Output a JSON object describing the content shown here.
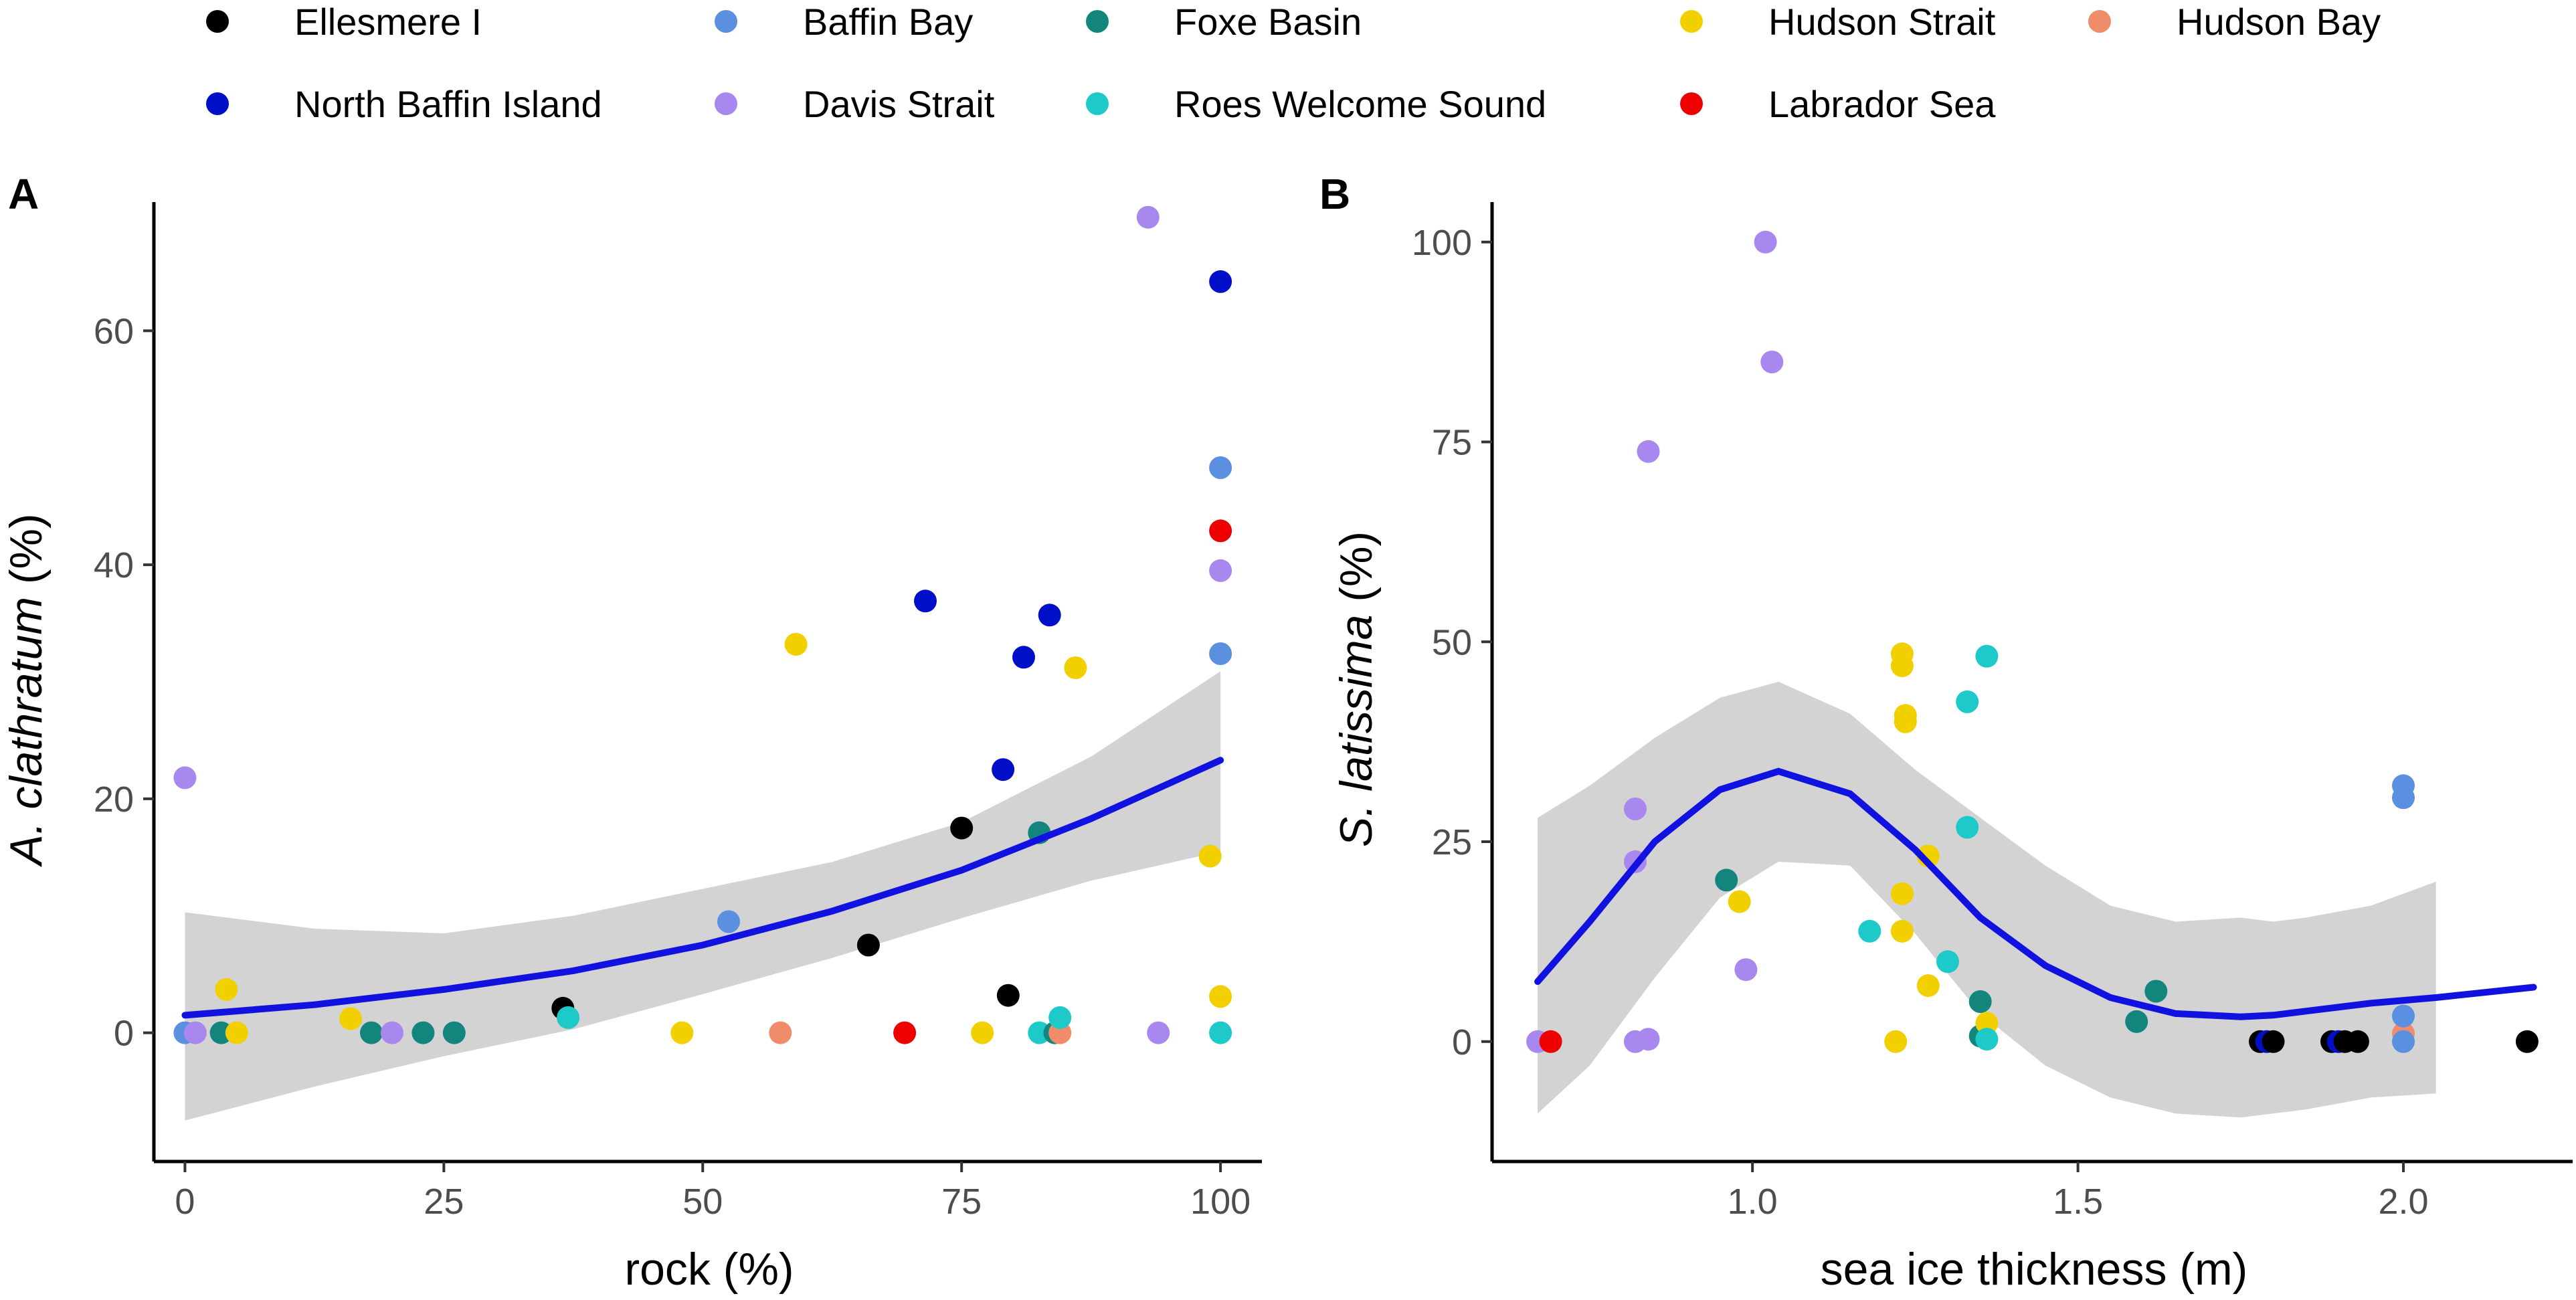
{
  "figure": {
    "legend": [
      {
        "name": "Ellesmere I",
        "color": "#000000"
      },
      {
        "name": "Baffin Bay",
        "color": "#5b8fe0"
      },
      {
        "name": "Foxe Basin",
        "color": "#14857c"
      },
      {
        "name": "Hudson Strait",
        "color": "#f2d000"
      },
      {
        "name": "Hudson Bay",
        "color": "#f08c6a"
      },
      {
        "name": "North Baffin Island",
        "color": "#0010c8"
      },
      {
        "name": "Davis Strait",
        "color": "#a887ee"
      },
      {
        "name": "Roes Welcome Sound",
        "color": "#1ec9c9"
      },
      {
        "name": "Labrador Sea",
        "color": "#ee0000"
      }
    ]
  },
  "chart_data": [
    {
      "type": "scatter",
      "panel_label": "A",
      "title": "",
      "xlabel": "rock (%)",
      "ylabel_italic": "A. clathratum",
      "ylabel_suffix": " (%)",
      "xlim": [
        -3,
        104
      ],
      "ylim": [
        -11,
        71
      ],
      "xticks": [
        0,
        25,
        50,
        75,
        100
      ],
      "yticks": [
        0,
        20,
        40,
        60
      ],
      "points": [
        {
          "group": "Davis Strait",
          "x": 0,
          "y": 21.8
        },
        {
          "group": "Baffin Bay",
          "x": 0,
          "y": 0
        },
        {
          "group": "Davis Strait",
          "x": 1,
          "y": 0
        },
        {
          "group": "Foxe Basin",
          "x": 3.5,
          "y": 0
        },
        {
          "group": "Hudson Strait",
          "x": 4,
          "y": 3.7
        },
        {
          "group": "Hudson Strait",
          "x": 5,
          "y": 0
        },
        {
          "group": "Hudson Strait",
          "x": 16,
          "y": 1.2
        },
        {
          "group": "Foxe Basin",
          "x": 18,
          "y": 0
        },
        {
          "group": "Davis Strait",
          "x": 20,
          "y": 0
        },
        {
          "group": "Foxe Basin",
          "x": 23,
          "y": 0
        },
        {
          "group": "Foxe Basin",
          "x": 26,
          "y": 0
        },
        {
          "group": "Ellesmere I",
          "x": 36.5,
          "y": 2.1
        },
        {
          "group": "Roes Welcome Sound",
          "x": 37,
          "y": 1.3
        },
        {
          "group": "Hudson Strait",
          "x": 48,
          "y": 0
        },
        {
          "group": "Baffin Bay",
          "x": 52.5,
          "y": 9.5
        },
        {
          "group": "Hudson Bay",
          "x": 57.5,
          "y": 0
        },
        {
          "group": "Hudson Strait",
          "x": 59,
          "y": 33.2
        },
        {
          "group": "Ellesmere I",
          "x": 66,
          "y": 7.5
        },
        {
          "group": "Labrador Sea",
          "x": 69.5,
          "y": 0
        },
        {
          "group": "North Baffin Island",
          "x": 71.5,
          "y": 36.9
        },
        {
          "group": "Ellesmere I",
          "x": 75,
          "y": 17.5
        },
        {
          "group": "Hudson Strait",
          "x": 77,
          "y": 0
        },
        {
          "group": "North Baffin Island",
          "x": 79,
          "y": 22.5
        },
        {
          "group": "Ellesmere I",
          "x": 79.5,
          "y": 3.2
        },
        {
          "group": "North Baffin Island",
          "x": 81,
          "y": 32.1
        },
        {
          "group": "Foxe Basin",
          "x": 82.5,
          "y": 17.1
        },
        {
          "group": "Roes Welcome Sound",
          "x": 82.5,
          "y": 0
        },
        {
          "group": "North Baffin Island",
          "x": 83.5,
          "y": 35.7
        },
        {
          "group": "Foxe Basin",
          "x": 84,
          "y": 0
        },
        {
          "group": "Hudson Bay",
          "x": 84.5,
          "y": 0
        },
        {
          "group": "Roes Welcome Sound",
          "x": 84.5,
          "y": 1.3
        },
        {
          "group": "Hudson Strait",
          "x": 86,
          "y": 31.2
        },
        {
          "group": "Davis Strait",
          "x": 93,
          "y": 69.7
        },
        {
          "group": "Davis Strait",
          "x": 94,
          "y": 0
        },
        {
          "group": "Hudson Strait",
          "x": 99,
          "y": 15.1
        },
        {
          "group": "North Baffin Island",
          "x": 100,
          "y": 64.2
        },
        {
          "group": "Baffin Bay",
          "x": 100,
          "y": 48.3
        },
        {
          "group": "Labrador Sea",
          "x": 100,
          "y": 42.9
        },
        {
          "group": "Davis Strait",
          "x": 100,
          "y": 39.5
        },
        {
          "group": "Baffin Bay",
          "x": 100,
          "y": 32.4
        },
        {
          "group": "Hudson Strait",
          "x": 100,
          "y": 3.1
        },
        {
          "group": "Roes Welcome Sound",
          "x": 100,
          "y": 0
        }
      ],
      "fit": {
        "x": [
          0,
          12.5,
          25,
          37.5,
          50,
          62.5,
          75,
          87.5,
          100
        ],
        "y": [
          1.5,
          2.4,
          3.7,
          5.3,
          7.5,
          10.4,
          13.9,
          18.3,
          23.3
        ],
        "lower": [
          -7.5,
          -4.6,
          -2.0,
          0.3,
          3.3,
          6.4,
          9.8,
          13.0,
          15.5
        ],
        "upper": [
          10.3,
          8.9,
          8.5,
          10.0,
          12.3,
          14.6,
          18.0,
          23.6,
          30.9
        ]
      }
    },
    {
      "type": "scatter",
      "panel_label": "B",
      "title": "",
      "xlabel": "sea ice thickness (m)",
      "ylabel_italic": "S. latissima",
      "ylabel_suffix": " (%)",
      "xlim": [
        0.6,
        2.26
      ],
      "ylim": [
        -15,
        105
      ],
      "xticks": [
        1.0,
        1.5,
        2.0
      ],
      "xtick_labels": [
        "1.0",
        "1.5",
        "2.0"
      ],
      "yticks": [
        0,
        25,
        50,
        75,
        100
      ],
      "points": [
        {
          "group": "Davis Strait",
          "x": 0.67,
          "y": 0
        },
        {
          "group": "Labrador Sea",
          "x": 0.69,
          "y": 0
        },
        {
          "group": "Davis Strait",
          "x": 0.82,
          "y": 29.1
        },
        {
          "group": "Davis Strait",
          "x": 0.82,
          "y": 22.5
        },
        {
          "group": "Davis Strait",
          "x": 0.82,
          "y": 0
        },
        {
          "group": "Davis Strait",
          "x": 0.84,
          "y": 73.8
        },
        {
          "group": "Davis Strait",
          "x": 0.84,
          "y": 0.3
        },
        {
          "group": "Foxe Basin",
          "x": 0.96,
          "y": 20.2
        },
        {
          "group": "Hudson Strait",
          "x": 0.98,
          "y": 17.5
        },
        {
          "group": "Davis Strait",
          "x": 0.99,
          "y": 9
        },
        {
          "group": "Davis Strait",
          "x": 1.02,
          "y": 100
        },
        {
          "group": "Davis Strait",
          "x": 1.03,
          "y": 85
        },
        {
          "group": "Roes Welcome Sound",
          "x": 1.18,
          "y": 13.8
        },
        {
          "group": "Hudson Strait",
          "x": 1.22,
          "y": 0
        },
        {
          "group": "Hudson Strait",
          "x": 1.23,
          "y": 48.5
        },
        {
          "group": "Hudson Strait",
          "x": 1.23,
          "y": 47
        },
        {
          "group": "Hudson Strait",
          "x": 1.235,
          "y": 40.8
        },
        {
          "group": "Hudson Strait",
          "x": 1.235,
          "y": 40
        },
        {
          "group": "Hudson Strait",
          "x": 1.23,
          "y": 18.5
        },
        {
          "group": "Hudson Strait",
          "x": 1.23,
          "y": 13.8
        },
        {
          "group": "Hudson Strait",
          "x": 1.27,
          "y": 23.2
        },
        {
          "group": "Hudson Strait",
          "x": 1.27,
          "y": 7
        },
        {
          "group": "Roes Welcome Sound",
          "x": 1.3,
          "y": 10
        },
        {
          "group": "Roes Welcome Sound",
          "x": 1.33,
          "y": 42.5
        },
        {
          "group": "Roes Welcome Sound",
          "x": 1.33,
          "y": 26.8
        },
        {
          "group": "Foxe Basin",
          "x": 1.35,
          "y": 5
        },
        {
          "group": "Foxe Basin",
          "x": 1.35,
          "y": 0.7
        },
        {
          "group": "Roes Welcome Sound",
          "x": 1.36,
          "y": 48.2
        },
        {
          "group": "Hudson Strait",
          "x": 1.36,
          "y": 2.3
        },
        {
          "group": "Roes Welcome Sound",
          "x": 1.36,
          "y": 0.3
        },
        {
          "group": "Foxe Basin",
          "x": 1.59,
          "y": 2.5
        },
        {
          "group": "Foxe Basin",
          "x": 1.62,
          "y": 6.3
        },
        {
          "group": "Ellesmere I",
          "x": 1.78,
          "y": 0
        },
        {
          "group": "North Baffin Island",
          "x": 1.79,
          "y": 0
        },
        {
          "group": "Ellesmere I",
          "x": 1.8,
          "y": 0
        },
        {
          "group": "Ellesmere I",
          "x": 1.89,
          "y": 0
        },
        {
          "group": "North Baffin Island",
          "x": 1.9,
          "y": 0
        },
        {
          "group": "Ellesmere I",
          "x": 1.91,
          "y": 0
        },
        {
          "group": "Ellesmere I",
          "x": 1.93,
          "y": 0
        },
        {
          "group": "Hudson Bay",
          "x": 2.0,
          "y": 1
        },
        {
          "group": "Baffin Bay",
          "x": 2.0,
          "y": 32
        },
        {
          "group": "Baffin Bay",
          "x": 2.0,
          "y": 30.5
        },
        {
          "group": "Baffin Bay",
          "x": 2.0,
          "y": 3.2
        },
        {
          "group": "Baffin Bay",
          "x": 2.0,
          "y": 0
        },
        {
          "group": "Ellesmere I",
          "x": 2.19,
          "y": 0
        }
      ],
      "fit": {
        "x": [
          0.67,
          0.75,
          0.85,
          0.95,
          1.04,
          1.15,
          1.25,
          1.35,
          1.45,
          1.55,
          1.65,
          1.75,
          1.8,
          1.85,
          1.95,
          2.05,
          2.2
        ],
        "y": [
          7.5,
          15,
          25,
          31.5,
          33.8,
          31,
          24,
          15.5,
          9.5,
          5.5,
          3.5,
          3.1,
          3.3,
          3.8,
          4.8,
          5.5,
          6.8
        ],
        "lower": [
          -9,
          -3,
          8,
          18,
          22.5,
          22,
          13.5,
          3.5,
          -3,
          -7,
          -9,
          -9.5,
          -9,
          -8.5,
          -7,
          -6.5,
          null
        ],
        "upper": [
          28,
          32,
          38,
          43,
          45,
          41,
          34,
          28,
          22,
          17,
          15,
          15.5,
          15,
          15.5,
          17,
          20,
          null
        ]
      }
    }
  ]
}
